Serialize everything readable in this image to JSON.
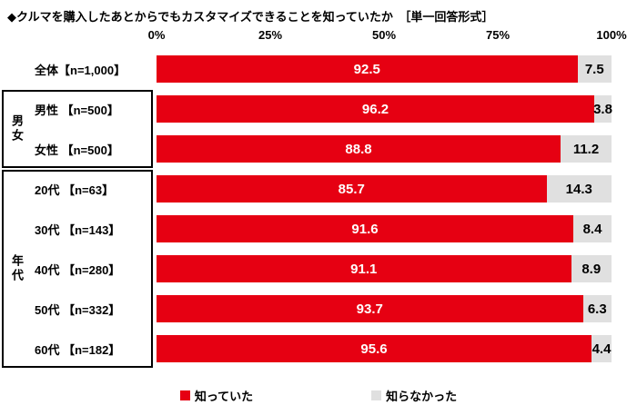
{
  "title": "◆クルマを購入したあとからでもカスタマイズできることを知っていたか　［単一回答形式］",
  "colors": {
    "known": "#e60012",
    "unknown": "#e0e0e0"
  },
  "axis": {
    "ticks": [
      "0%",
      "25%",
      "50%",
      "75%",
      "100%"
    ]
  },
  "groups": [
    "男女",
    "年代"
  ],
  "legend": [
    {
      "label": "知っていた",
      "color": "#e60012"
    },
    {
      "label": "知らなかった",
      "color": "#e0e0e0"
    }
  ],
  "chart_data": {
    "type": "bar",
    "orientation": "horizontal",
    "stacked": true,
    "grid": false,
    "unit": "%",
    "title": "クルマを購入したあとからでもカスタマイズできることを知っていたか（単一回答形式）",
    "categories": [
      "全体【n=1,000】",
      "男性 【n=500】",
      "女性 【n=500】",
      "20代 【n=63】",
      "30代 【n=143】",
      "40代 【n=280】",
      "50代 【n=332】",
      "60代 【n=182】"
    ],
    "series": [
      {
        "name": "知っていた",
        "values": [
          92.5,
          96.2,
          88.8,
          85.7,
          91.6,
          91.1,
          93.7,
          95.6
        ]
      },
      {
        "name": "知らなかった",
        "values": [
          7.5,
          3.8,
          11.2,
          14.3,
          8.4,
          8.9,
          6.3,
          4.4
        ]
      }
    ],
    "xlim": [
      0,
      100
    ],
    "legend_position": "bottom"
  }
}
